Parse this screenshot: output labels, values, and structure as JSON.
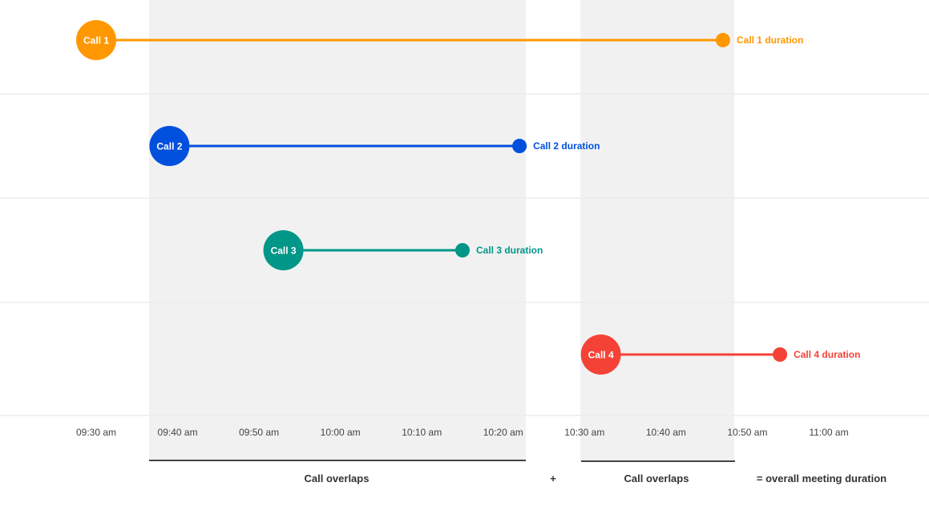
{
  "chart_data": {
    "type": "line",
    "x_ticks": [
      "09:30 am",
      "09:40 am",
      "09:50 am",
      "10:00 am",
      "10:10 am",
      "10:20 am",
      "10:30 am",
      "10:40 am",
      "10:50 am",
      "11:00 am"
    ],
    "xlim": [
      "09:30",
      "11:00"
    ],
    "grid": true,
    "series": [
      {
        "name": "Call 1",
        "end_label": "Call 1 duration",
        "start": "09:30",
        "end": "10:47",
        "color": "#ff9800"
      },
      {
        "name": "Call 2",
        "end_label": "Call 2 duration",
        "start": "09:39",
        "end": "10:22",
        "color": "#0050dd"
      },
      {
        "name": "Call 3",
        "end_label": "Call 3 duration",
        "start": "09:53",
        "end": "10:15",
        "color": "#009688"
      },
      {
        "name": "Call 4",
        "end_label": "Call 4 duration",
        "start": "10:32",
        "end": "10:54",
        "color": "#f44336"
      }
    ],
    "annotations": {
      "overlap_1": "Call overlaps",
      "plus": "+",
      "overlap_2": "Call overlaps",
      "total": "= overall meeting duration"
    }
  }
}
